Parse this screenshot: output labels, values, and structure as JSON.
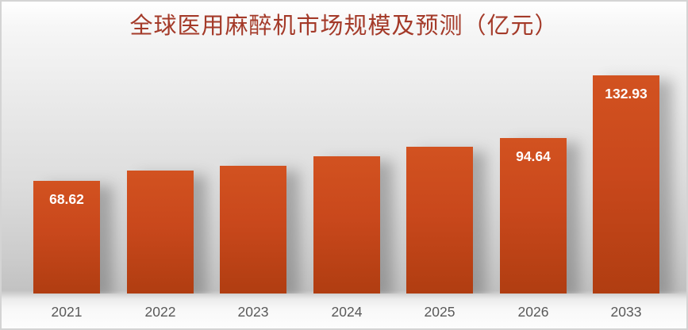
{
  "chart_data": {
    "type": "bar",
    "title": "全球医用麻醉机市场规模及预测（亿元）",
    "categories": [
      "2021",
      "2022",
      "2023",
      "2024",
      "2025",
      "2026",
      "2033"
    ],
    "values": [
      68.62,
      75.1,
      77.8,
      83.6,
      89.4,
      94.64,
      132.93
    ],
    "data_labels": [
      "68.62",
      "",
      "",
      "",
      "",
      "94.64",
      "132.93"
    ],
    "values_estimated_from_pixels": [
      false,
      true,
      true,
      true,
      true,
      false,
      false
    ],
    "xlabel": "",
    "ylabel": "",
    "ylim": [
      0,
      140
    ],
    "grid": false,
    "legend": "none",
    "colors": {
      "bar_top": "#D25220",
      "bar_bottom": "#B03D11",
      "title": "#A43A29",
      "axis_label": "#595959",
      "data_label": "#FFFFFF",
      "frame_border": "#D4D4D4"
    }
  }
}
